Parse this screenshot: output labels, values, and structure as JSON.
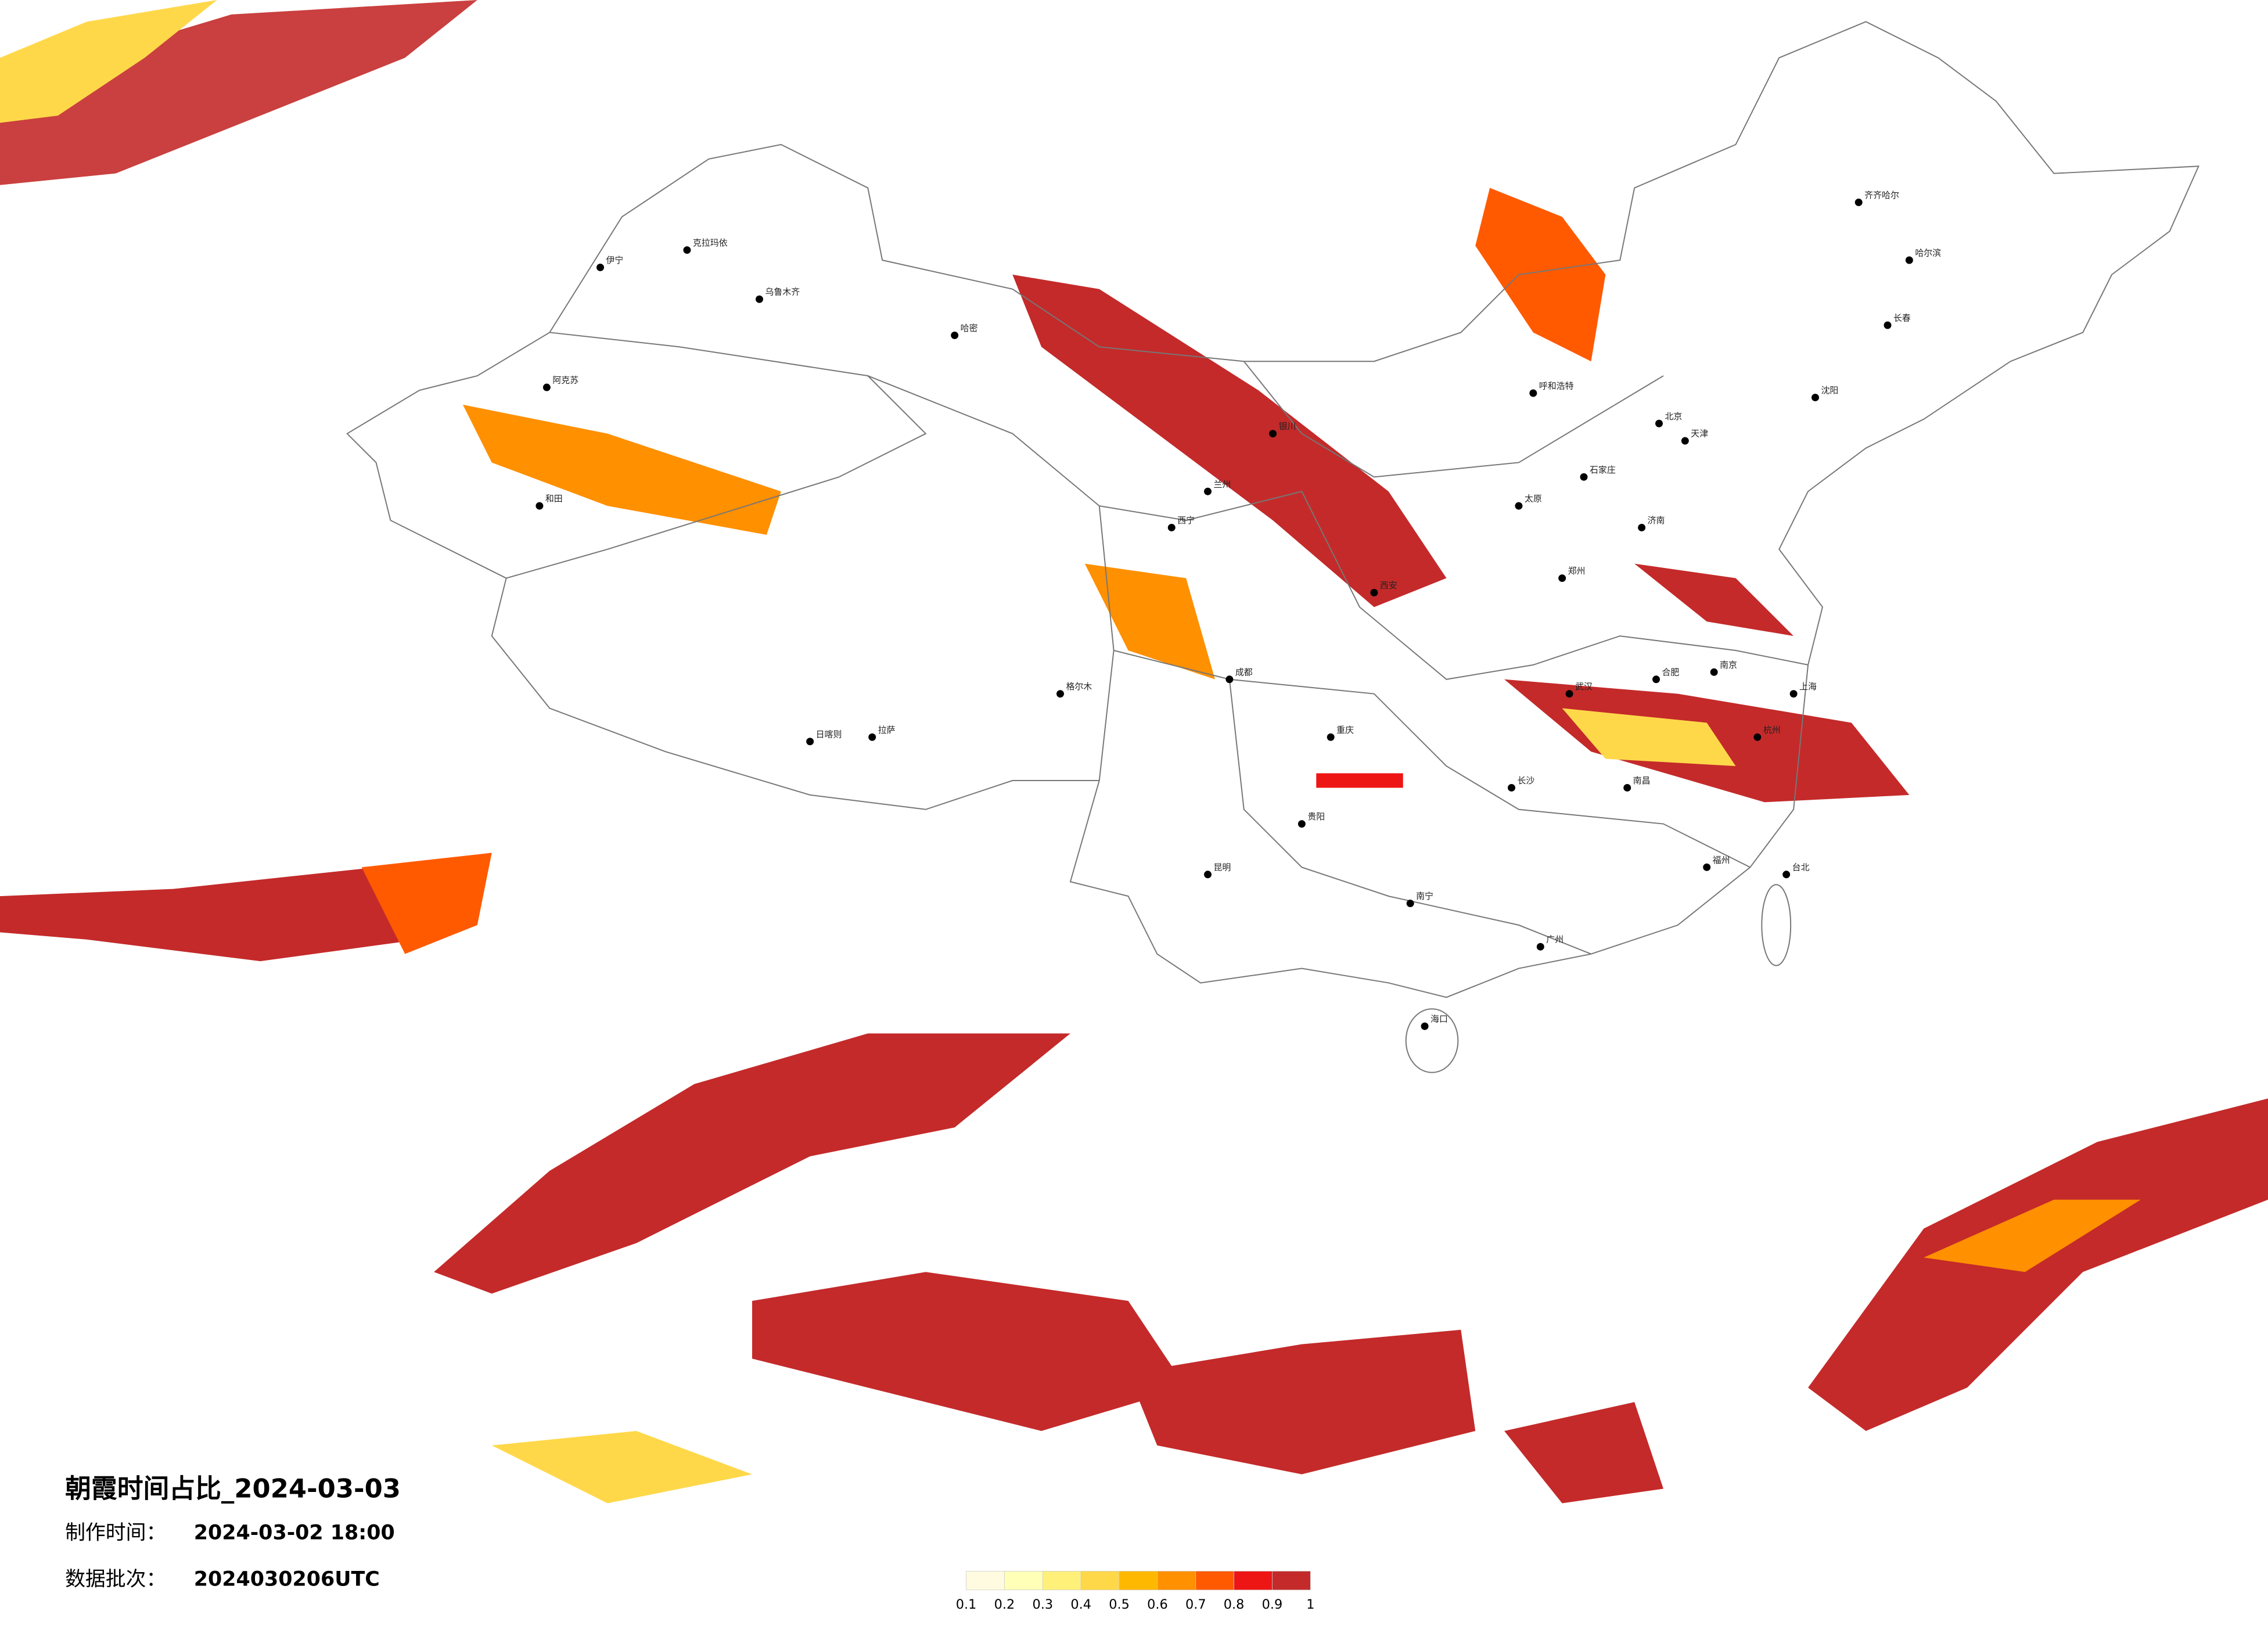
{
  "header": {
    "title": "朝霞时间占比_2024-03-03",
    "made_label": "制作时间：",
    "made_value": "2024-03-02 18:00",
    "batch_label": "数据批次：",
    "batch_value": "2024030206UTC"
  },
  "legend": {
    "colors": [
      "#fffbe0",
      "#ffffb8",
      "#fff07a",
      "#ffd84a",
      "#ffb800",
      "#ff9000",
      "#ff5a00",
      "#ee1515",
      "#c42a2a"
    ],
    "ticks": [
      0.1,
      0.2,
      0.3,
      0.4,
      0.5,
      0.6,
      0.7,
      0.8,
      0.9,
      1
    ]
  },
  "cities": [
    "克拉玛依",
    "伊宁",
    "乌鲁木齐",
    "哈密",
    "阿克苏",
    "和田",
    "格尔木",
    "拉萨",
    "日喀则",
    "西宁",
    "兰州",
    "银川",
    "呼和浩特",
    "北京",
    "天津",
    "石家庄",
    "太原",
    "济南",
    "郑州",
    "西安",
    "成都",
    "重庆",
    "贵阳",
    "昆明",
    "南宁",
    "海口",
    "广州",
    "长沙",
    "武汉",
    "南昌",
    "合肥",
    "南京",
    "上海",
    "杭州",
    "福州",
    "台北",
    "沈阳",
    "长春",
    "哈尔滨",
    "齐齐哈尔"
  ]
}
